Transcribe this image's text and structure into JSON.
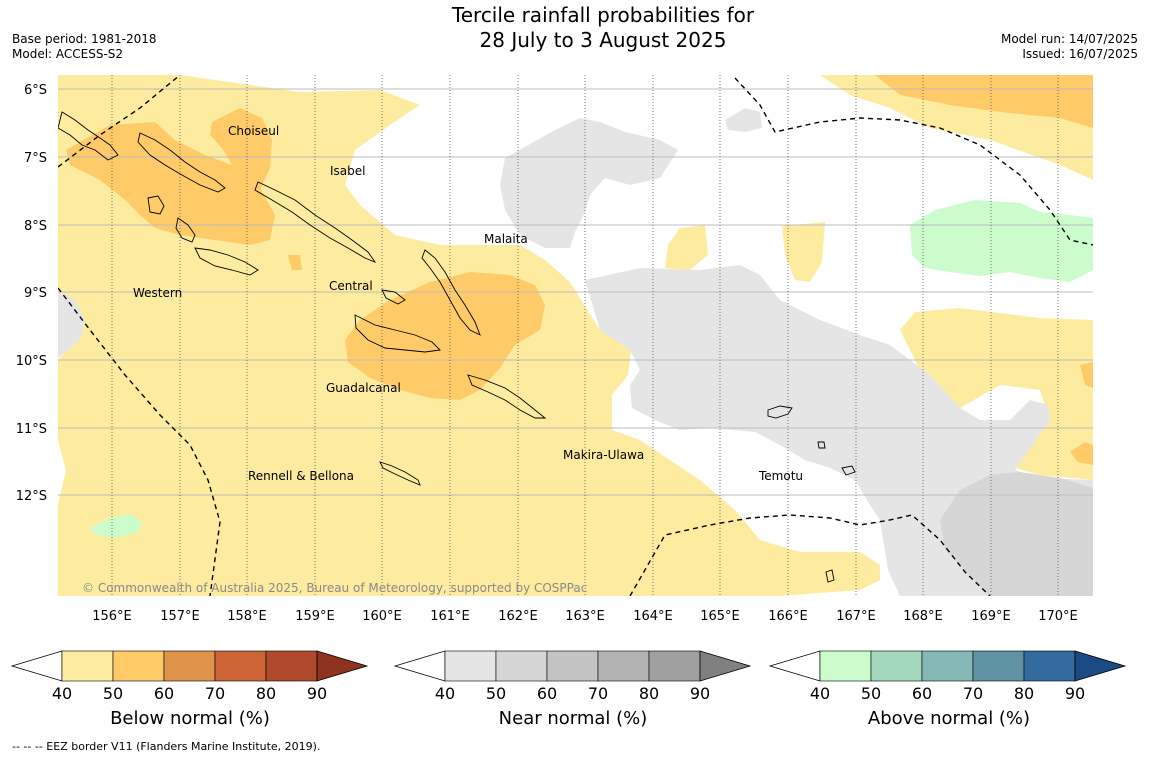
{
  "title": {
    "line1": "Tercile rainfall probabilities for",
    "line2": "28 July to 3 August 2025"
  },
  "meta": {
    "base_period": "Base period: 1981-2018",
    "model": "Model: ACCESS-S2",
    "model_run": "Model run: 14/07/2025",
    "issued": "Issued: 16/07/2025"
  },
  "map": {
    "lat_labels": [
      "6°S",
      "7°S",
      "8°S",
      "9°S",
      "10°S",
      "11°S",
      "12°S"
    ],
    "lon_labels": [
      "156°E",
      "157°E",
      "158°E",
      "159°E",
      "160°E",
      "161°E",
      "162°E",
      "163°E",
      "164°E",
      "165°E",
      "166°E",
      "167°E",
      "168°E",
      "169°E",
      "170°E"
    ],
    "region_labels": {
      "choiseul": "Choiseul",
      "isabel": "Isabel",
      "malaita": "Malaita",
      "western": "Western",
      "central": "Central",
      "guadalcanal": "Guadalcanal",
      "makira": "Makira-Ulawa",
      "temotu": "Temotu",
      "rennell": "Rennell & Bellona"
    },
    "copyright": "© Commonwealth of Australia 2025, Bureau of Meteorology, supported by COSPPac"
  },
  "colorbars": [
    {
      "label": "Below normal (%)",
      "ticks": [
        "40",
        "50",
        "60",
        "70",
        "80",
        "90"
      ],
      "colors": [
        "#fdeca0",
        "#fecb68",
        "#e0934a",
        "#cc6436",
        "#af4a2b",
        "#8f3220"
      ]
    },
    {
      "label": "Near normal (%)",
      "ticks": [
        "40",
        "50",
        "60",
        "70",
        "80",
        "90"
      ],
      "colors": [
        "#e5e5e5",
        "#d6d6d6",
        "#c4c4c4",
        "#b3b3b3",
        "#a0a0a0",
        "#808080"
      ]
    },
    {
      "label": "Above normal (%)",
      "ticks": [
        "40",
        "50",
        "60",
        "70",
        "80",
        "90"
      ],
      "colors": [
        "#ccfccc",
        "#a4d8bc",
        "#84b8b4",
        "#5f93a4",
        "#336b9f",
        "#1b4a84"
      ]
    }
  ],
  "footnote": "--  --  -- EEZ border V11 (Flanders Marine Institute, 2019)."
}
